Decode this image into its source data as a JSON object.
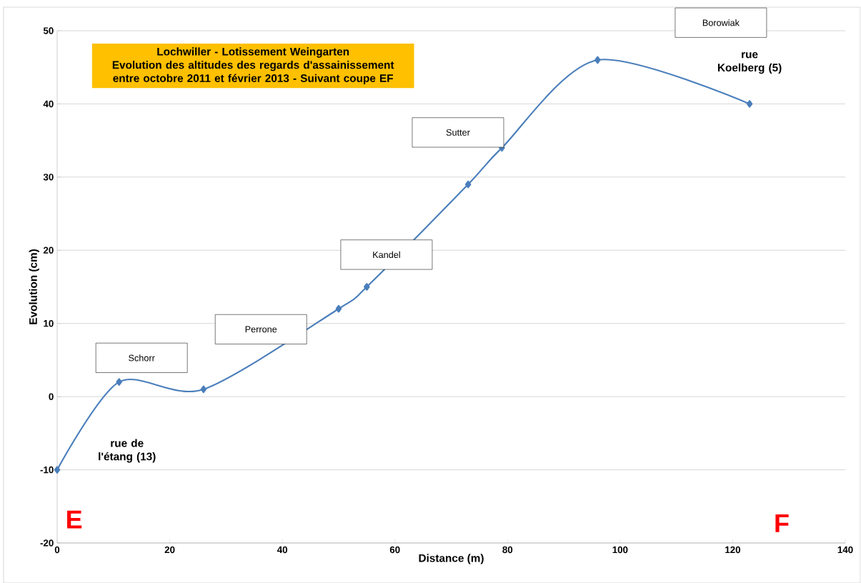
{
  "chart_data": {
    "type": "line",
    "title": "Lochwiller - Lotissement Weingarten",
    "subtitle": "Evolution des altitudes des regards d'assainissement entre octobre 2011 et février 2013 - Suivant coupe EF",
    "xlabel": "Distance (m)",
    "ylabel": "Evolution (cm)",
    "x": [
      0,
      11,
      26,
      50,
      55,
      73,
      79,
      96,
      123
    ],
    "series": [
      {
        "color": "#4a7ebb",
        "values": [
          -10,
          2,
          1,
          12,
          15,
          29,
          34,
          46,
          40
        ]
      }
    ],
    "xlim": [
      0,
      140
    ],
    "ylim": [
      -20,
      50
    ],
    "xticks": [
      0,
      20,
      40,
      60,
      80,
      100,
      120,
      140
    ],
    "yticks": [
      -20,
      -10,
      0,
      10,
      20,
      30,
      40,
      50
    ],
    "grid": "y",
    "marker": "diamond",
    "line_style": "solid",
    "annotations": [
      "Schorr",
      "Perrone",
      "Kandel",
      "Sutter",
      "Borowiak",
      "rue de l'étang (13)",
      "rue Koelberg (5)",
      "E",
      "F"
    ]
  }
}
